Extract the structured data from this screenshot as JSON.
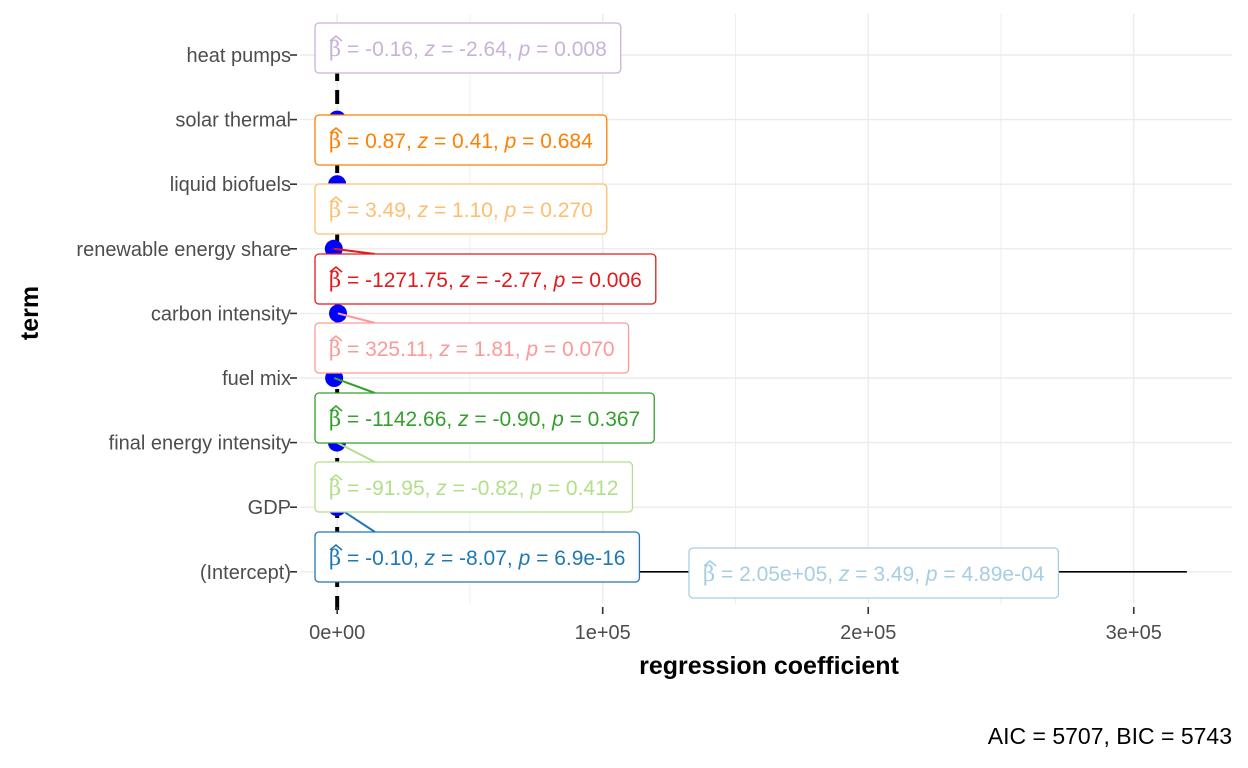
{
  "chart_data": {
    "type": "scatter",
    "xlabel": "regression coefficient",
    "ylabel": "term",
    "xlim": [
      -14000,
      337000
    ],
    "x_ticks": [
      {
        "value": 0,
        "label": "0e+00"
      },
      {
        "value": 100000,
        "label": "1e+05"
      },
      {
        "value": 200000,
        "label": "2e+05"
      },
      {
        "value": 300000,
        "label": "3e+05"
      }
    ],
    "reference_line_x": 0,
    "grid": true,
    "point_color": "#0000ff",
    "terms": [
      {
        "term": "heat pumps",
        "estimate": -0.16,
        "conf_low": -0.28,
        "conf_high": -0.04,
        "color": "#cab2d6",
        "beta": "-0.16",
        "z": "-2.64",
        "p": "0.008"
      },
      {
        "term": "solar thermal",
        "estimate": 0.87,
        "conf_low": -3.3,
        "conf_high": 5.0,
        "color": "#ff7f00",
        "beta": "0.87",
        "z": "0.41",
        "p": "0.684"
      },
      {
        "term": "liquid biofuels",
        "estimate": 3.49,
        "conf_low": -2.7,
        "conf_high": 9.7,
        "color": "#fdbf6f",
        "beta": "3.49",
        "z": "1.10",
        "p": "0.270"
      },
      {
        "term": "renewable energy share",
        "estimate": -1271.75,
        "conf_low": -2170,
        "conf_high": -373,
        "color": "#e31a1c",
        "beta": "-1271.75",
        "z": "-2.77",
        "p": "0.006"
      },
      {
        "term": "carbon intensity",
        "estimate": 325.11,
        "conf_low": -27,
        "conf_high": 677,
        "color": "#fb9a99",
        "beta": "325.11",
        "z": "1.81",
        "p": "0.070"
      },
      {
        "term": "fuel mix",
        "estimate": -1142.66,
        "conf_low": -3630,
        "conf_high": 1340,
        "color": "#33a02c",
        "beta": "-1142.66",
        "z": "-0.90",
        "p": "0.367"
      },
      {
        "term": "final energy intensity",
        "estimate": -91.95,
        "conf_low": -311,
        "conf_high": 128,
        "color": "#b2df8a",
        "beta": "-91.95",
        "z": "-0.82",
        "p": "0.412"
      },
      {
        "term": "GDP",
        "estimate": -0.1,
        "conf_low": -0.12,
        "conf_high": -0.08,
        "color": "#1f78b4",
        "beta": "-0.10",
        "z": "-8.07",
        "p": "6.9e-16"
      },
      {
        "term": "(Intercept)",
        "estimate": 205000,
        "conf_low": 90000,
        "conf_high": 320000,
        "color": "#a6cee3",
        "beta": "2.05e+05",
        "z": "3.49",
        "p": "4.89e-04"
      }
    ]
  },
  "caption": "AIC = 5707, BIC = 5743"
}
